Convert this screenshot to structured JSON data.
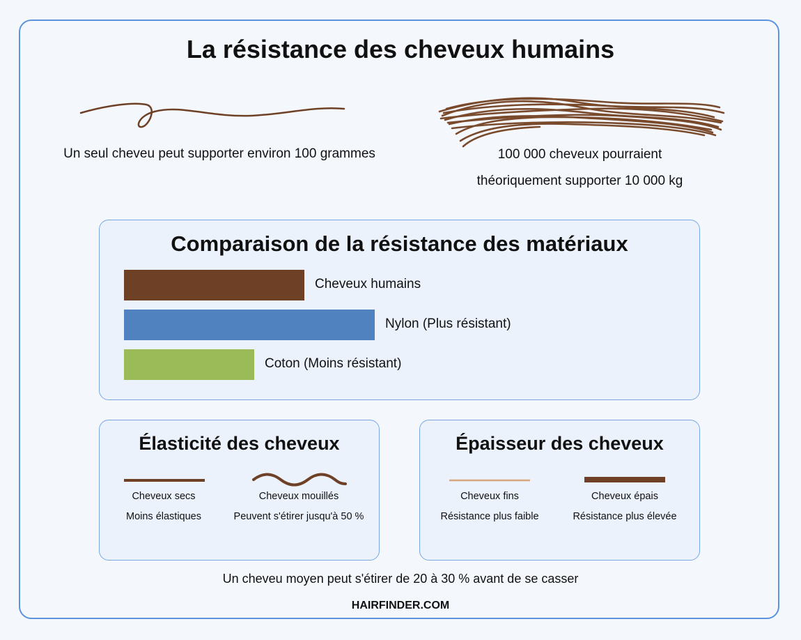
{
  "title": "La résistance des cheveux humains",
  "single_hair": {
    "icon": "single-hair-strand-icon",
    "caption": "Un seul cheveu peut supporter environ 100 grammes"
  },
  "hair_bundle": {
    "icon": "hair-bundle-icon",
    "caption_line1": "100 000 cheveux pourraient",
    "caption_line2": "théoriquement supporter 10 000 kg"
  },
  "comparison": {
    "title": "Comparaison de la résistance des matériaux",
    "chart_data": {
      "type": "bar",
      "orientation": "horizontal",
      "note": "relative strength comparison, no numeric axis shown",
      "categories": [
        "Cheveux humains",
        "Nylon (Plus résistant)",
        "Coton (Moins résistant)"
      ],
      "values": [
        72,
        100,
        52
      ],
      "colors": [
        "#6e4127",
        "#4f82be",
        "#9bbb59"
      ]
    }
  },
  "elasticity": {
    "title": "Élasticité des cheveux",
    "items": [
      {
        "icon": "straight-line-icon",
        "label": "Cheveux secs",
        "detail": "Moins élastiques"
      },
      {
        "icon": "wavy-line-icon",
        "label": "Cheveux mouillés",
        "detail": "Peuvent s'étirer jusqu'à 50 %"
      }
    ]
  },
  "thickness": {
    "title": "Épaisseur des cheveux",
    "items": [
      {
        "icon": "thin-line-icon",
        "label": "Cheveux fins",
        "detail": "Résistance plus faible"
      },
      {
        "icon": "thick-line-icon",
        "label": "Cheveux épais",
        "detail": "Résistance plus élevée"
      }
    ]
  },
  "footer_note": "Un cheveu moyen peut s'étirer de 20 à 30 % avant de se casser",
  "credit": "HAIRFINDER.COM",
  "colors": {
    "hair_dark": "#6e4127",
    "hair_light": "#d7a57a",
    "nylon": "#4f82be",
    "cotton": "#9bbb59",
    "border": "#5b93dc"
  }
}
